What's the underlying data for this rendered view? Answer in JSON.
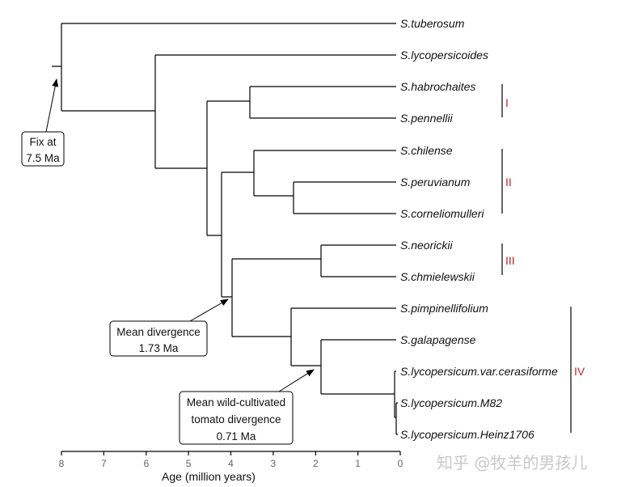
{
  "leaves": [
    "S.tuberosum",
    "S.lycopersicoides",
    "S.habrochaites",
    "S.pennellii",
    "S.chilense",
    "S.peruvianum",
    "S.corneliomulleri",
    "S.neorickii",
    "S.chmielewskii",
    "S.pimpinellifolium",
    "S.galapagense",
    "S.lycopersicum.var.cerasiforme",
    "S.lycopersicum.M82",
    "S.lycopersicum.Heinz1706"
  ],
  "clades": [
    "I",
    "II",
    "III",
    "IV"
  ],
  "axis": {
    "title": "Age (million years)",
    "ticks": [
      "8",
      "7",
      "6",
      "5",
      "4",
      "3",
      "2",
      "1",
      "0"
    ]
  },
  "callouts": {
    "fix": [
      "Fix at",
      "7.5 Ma"
    ],
    "mean": [
      "Mean divergence",
      "1.73 Ma"
    ],
    "wild": [
      "Mean wild-cultivated",
      "tomato divergence",
      "0.71 Ma"
    ]
  },
  "watermark": "知乎 @牧羊的男孩儿",
  "colors": {
    "clade_label": "#c0262d",
    "line": "#000000"
  }
}
